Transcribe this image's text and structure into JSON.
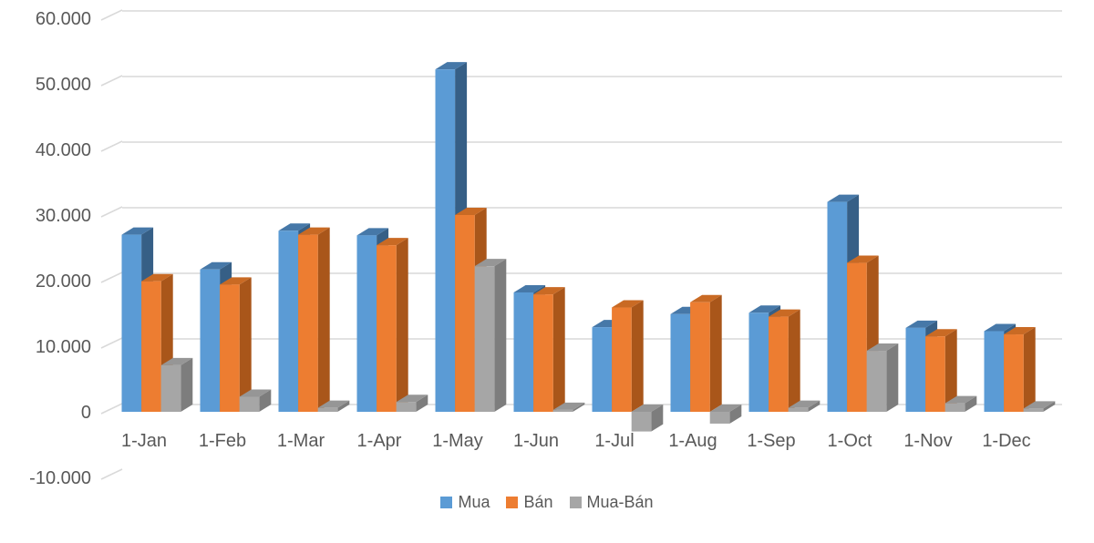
{
  "chart_data": {
    "type": "bar",
    "variant": "3d-clustered-column",
    "title": "",
    "categories": [
      "1-Jan",
      "1-Feb",
      "1-Mar",
      "1-Apr",
      "1-May",
      "1-Jun",
      "1-Jul",
      "1-Aug",
      "1-Sep",
      "1-Oct",
      "1-Nov",
      "1-Dec"
    ],
    "series": [
      {
        "name": "Mua",
        "color": "#5B9BD5",
        "color_top": "#4678A8",
        "color_side": "#365F86",
        "values": [
          27000,
          21700,
          27600,
          26900,
          52200,
          18200,
          12900,
          14900,
          15100,
          32000,
          12800,
          12300
        ]
      },
      {
        "name": "Bán",
        "color": "#ED7D31",
        "color_top": "#C96A24",
        "color_side": "#A9561A",
        "values": [
          19900,
          19400,
          27000,
          25400,
          30000,
          17900,
          15900,
          16700,
          14500,
          22700,
          11500,
          11800
        ]
      },
      {
        "name": "Mua-Bán",
        "color": "#A6A6A6",
        "color_top": "#969696",
        "color_side": "#7D7D7D",
        "values": [
          7100,
          2300,
          600,
          1500,
          22200,
          300,
          -3000,
          -1800,
          600,
          9300,
          1300,
          500
        ]
      }
    ],
    "xlabel": "",
    "ylabel": "",
    "ylim": [
      -10000,
      60000
    ],
    "y_step": 10000,
    "y_tick_labels": [
      "-10.000",
      "0",
      "10.000",
      "20.000",
      "30.000",
      "40.000",
      "50.000",
      "60.000"
    ],
    "grid": true,
    "legend_position": "bottom-center",
    "axis_text_color": "#595959",
    "gridline_color": "#D9D9D9",
    "background": "#FFFFFF"
  }
}
